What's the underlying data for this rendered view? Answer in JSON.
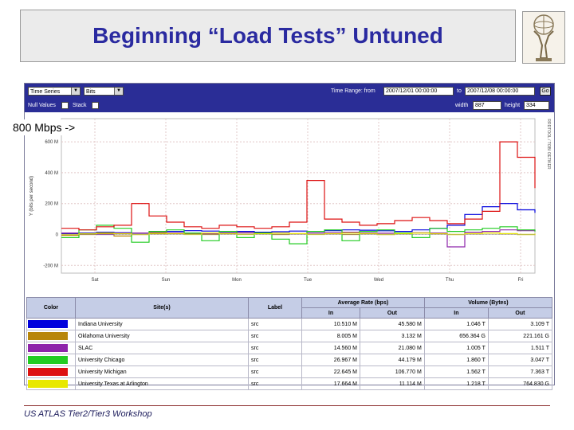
{
  "slide": {
    "title": "Beginning “Load Tests” Untuned",
    "callout": "800 Mbps ->",
    "footer": "US ATLAS Tier2/Tier3 Workshop"
  },
  "toolbar": {
    "series_type": "Time Series",
    "unit": "Bits",
    "null_values_label": "Null Values",
    "stack_label": "Stack",
    "time_range_label": "Time Range: from",
    "from_value": "2007/12/01 00:00:00",
    "to_label": "to",
    "to_value": "2007/12/08 00:00:00",
    "go_label": "Go",
    "width_label": "width",
    "width_value": "887",
    "height_label": "height",
    "height_value": "334"
  },
  "chart_data": {
    "type": "line",
    "ylabel": "Y (bits per second)",
    "yticks": [
      "600 M",
      "400 M",
      "200 M",
      "0",
      "-200 M"
    ],
    "ylim": [
      -250,
      750
    ],
    "xticks": [
      "Sat",
      "Sun",
      "Mon",
      "Tue",
      "Wed",
      "Thu",
      "Fri"
    ],
    "side_label": "RRDTOOL / TOBI OETIKER",
    "series": [
      {
        "name": "Indiana University",
        "color": "#0000dd",
        "values": [
          5,
          10,
          15,
          12,
          8,
          10,
          20,
          25,
          22,
          18,
          20,
          15,
          18,
          22,
          20,
          25,
          30,
          28,
          24,
          20,
          30,
          40,
          60,
          130,
          180,
          200,
          160,
          140
        ]
      },
      {
        "name": "Oklahoma University",
        "color": "#b8860b",
        "values": [
          -5,
          0,
          5,
          -10,
          0,
          5,
          10,
          5,
          0,
          5,
          10,
          5,
          0,
          5,
          10,
          5,
          0,
          5,
          0,
          5,
          10,
          5,
          0,
          5,
          10,
          5,
          0,
          5
        ]
      },
      {
        "name": "SLAC",
        "color": "#8e24aa",
        "values": [
          10,
          5,
          0,
          8,
          10,
          15,
          10,
          8,
          5,
          10,
          12,
          10,
          8,
          5,
          10,
          12,
          15,
          10,
          8,
          10,
          12,
          10,
          -80,
          15,
          20,
          30,
          25,
          20
        ]
      },
      {
        "name": "University Chicago",
        "color": "#22cc22",
        "values": [
          -20,
          30,
          60,
          40,
          -50,
          20,
          30,
          10,
          -40,
          20,
          -20,
          10,
          -30,
          -60,
          20,
          30,
          -40,
          20,
          30,
          10,
          -20,
          40,
          20,
          30,
          40,
          50,
          30,
          20
        ]
      },
      {
        "name": "University Michigan",
        "color": "#dd1111",
        "values": [
          40,
          30,
          50,
          60,
          200,
          120,
          80,
          50,
          40,
          60,
          50,
          40,
          50,
          80,
          350,
          100,
          80,
          60,
          70,
          90,
          110,
          90,
          70,
          100,
          150,
          600,
          500,
          300
        ]
      },
      {
        "name": "University Texas at Arlington",
        "color": "#e8e800",
        "values": [
          0,
          5,
          10,
          5,
          0,
          8,
          5,
          0,
          10,
          5,
          0,
          5,
          8,
          5,
          0,
          5,
          10,
          5,
          0,
          5,
          10,
          5,
          0,
          5,
          10,
          5,
          0,
          5
        ]
      }
    ]
  },
  "legend_table": {
    "headers": [
      "Color",
      "Site(s)",
      "Label",
      "Average Rate (bps)",
      "Volume (Bytes)"
    ],
    "subheaders": [
      "In",
      "Out",
      "In",
      "Out"
    ],
    "rows": [
      {
        "color": "#0000dd",
        "site": "Indiana University",
        "label": "src",
        "avg_in": "10.510 M",
        "avg_out": "45.580 M",
        "vol_in": "1.046 T",
        "vol_out": "3.109 T"
      },
      {
        "color": "#b8860b",
        "site": "Oklahoma University",
        "label": "src",
        "avg_in": "8.005 M",
        "avg_out": "3.132 M",
        "vol_in": "656.364 G",
        "vol_out": "221.161 G"
      },
      {
        "color": "#8e24aa",
        "site": "SLAC",
        "label": "src",
        "avg_in": "14.560 M",
        "avg_out": "21.080 M",
        "vol_in": "1.005 T",
        "vol_out": "1.511 T"
      },
      {
        "color": "#22cc22",
        "site": "University Chicago",
        "label": "src",
        "avg_in": "26.967 M",
        "avg_out": "44.179 M",
        "vol_in": "1.860 T",
        "vol_out": "3.047 T"
      },
      {
        "color": "#dd1111",
        "site": "University Michigan",
        "label": "src",
        "avg_in": "22.645 M",
        "avg_out": "106.770 M",
        "vol_in": "1.562 T",
        "vol_out": "7.363 T"
      },
      {
        "color": "#e8e800",
        "site": "University Texas at Arlington",
        "label": "src",
        "avg_in": "17.664 M",
        "avg_out": "11.114 M",
        "vol_in": "1.218 T",
        "vol_out": "764.830 G"
      }
    ]
  }
}
